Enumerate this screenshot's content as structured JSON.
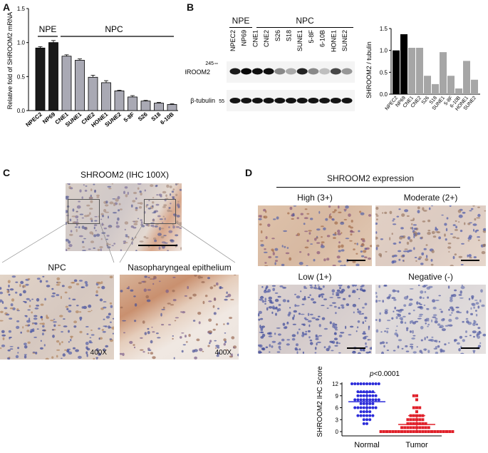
{
  "panels": {
    "a": "A",
    "b": "B",
    "c": "C",
    "d": "D"
  },
  "panelA": {
    "ylabel": "Relative fold of SHROOM2 mRNA",
    "group_npe": "NPE",
    "group_npc": "NPC"
  },
  "panelB": {
    "group_npe": "NPE",
    "group_npc": "NPC",
    "lanes": [
      "NPEC2",
      "NP69",
      "CNE1",
      "CNE2",
      "S26",
      "S18",
      "SUNE1",
      "5-8F",
      "6-10B",
      "HONE1",
      "SUNE2"
    ],
    "marker_top": "245",
    "marker_bottom": "55",
    "band1": "SHROOM2",
    "band2": "β-tubulin",
    "ratio_ylabel": "SHROOM2 / tubulin"
  },
  "panelC": {
    "title": "SHROOM2 (IHC 100X)",
    "zoom1_title": "NPC",
    "zoom2_title": "Nasopharyngeal epithelium",
    "mag1": "400X",
    "mag2": "400X"
  },
  "panelD": {
    "title": "SHROOM2 expression",
    "high": "High (3+)",
    "moderate": "Moderate (2+)",
    "low": "Low (1+)",
    "negative": "Negative (-)",
    "pvalue_italic": "p",
    "pvalue_rest": "<0.0001"
  },
  "chart_data": [
    {
      "type": "bar",
      "categories": [
        "NPEC2",
        "NP69",
        "CNE1",
        "SUNE1",
        "CNE2",
        "HONE1",
        "SUNE2",
        "5-8F",
        "S26",
        "S18",
        "6-10B"
      ],
      "values": [
        0.92,
        1.0,
        0.8,
        0.74,
        0.49,
        0.41,
        0.29,
        0.2,
        0.14,
        0.11,
        0.09
      ],
      "errors": [
        0.02,
        0.03,
        0.02,
        0.02,
        0.03,
        0.03,
        0.01,
        0.02,
        0.01,
        0.01,
        0.01
      ],
      "colors": [
        "#1a1a1a",
        "#1a1a1a",
        "#a9a9b4",
        "#a9a9b4",
        "#a9a9b4",
        "#a9a9b4",
        "#a9a9b4",
        "#a9a9b4",
        "#a9a9b4",
        "#a9a9b4",
        "#a9a9b4"
      ],
      "ylabel": "Relative fold of SHROOM2 mRNA",
      "ylim": [
        0,
        1.5
      ],
      "yticks": [
        "0.0",
        "0.5",
        "1.0",
        "1.5"
      ]
    },
    {
      "type": "bar",
      "categories": [
        "NPEC2",
        "NP69",
        "CNE1",
        "CNE2",
        "S26",
        "S18",
        "SUNE1",
        "5-8F",
        "6-10B",
        "HONE1",
        "SUNE2"
      ],
      "values": [
        1.0,
        1.37,
        1.06,
        1.06,
        0.42,
        0.23,
        0.96,
        0.42,
        0.13,
        0.76,
        0.33
      ],
      "colors": [
        "#000000",
        "#000000",
        "#a6a6a6",
        "#a6a6a6",
        "#a6a6a6",
        "#a6a6a6",
        "#a6a6a6",
        "#a6a6a6",
        "#a6a6a6",
        "#a6a6a6",
        "#a6a6a6"
      ],
      "ylabel": "SHROOM2 / tubulin",
      "ylim": [
        0,
        1.5
      ],
      "yticks": [
        "0.0",
        "0.5",
        "1.0",
        "1.5"
      ]
    },
    {
      "type": "scatter",
      "categories": [
        "Normal",
        "Tumor"
      ],
      "ylabel": "SHROOM2 IHC Score",
      "ylim": [
        0,
        12
      ],
      "yticks": [
        "0",
        "3",
        "6",
        "9",
        "12"
      ],
      "series": [
        {
          "name": "Normal",
          "color": "#2b2bd9",
          "mean": 7.5,
          "sd": 2.3,
          "values": [
            12,
            12,
            12,
            12,
            12,
            12,
            12,
            12,
            12,
            12,
            10,
            10,
            10,
            10,
            10,
            10,
            9,
            9,
            9,
            9,
            9,
            9,
            9,
            8,
            8,
            8,
            8,
            8,
            8,
            8,
            8,
            8,
            7,
            7,
            7,
            7,
            7,
            6,
            6,
            6,
            6,
            6,
            6,
            6,
            6,
            5,
            5,
            5,
            5,
            4,
            4,
            4,
            4,
            4,
            4,
            3,
            3,
            3,
            2,
            2
          ]
        },
        {
          "name": "Tumor",
          "color": "#e0202a",
          "mean": 1.8,
          "sd": 2.2,
          "values": [
            9,
            9,
            8,
            6,
            6,
            6,
            5,
            4,
            4,
            4,
            4,
            4,
            3,
            3,
            3,
            3,
            3,
            3,
            2,
            2,
            2,
            2,
            2,
            2,
            2,
            1,
            1,
            1,
            1,
            1,
            1,
            1,
            1,
            1,
            1,
            0,
            0,
            0,
            0,
            0,
            0,
            0,
            0,
            0,
            0,
            0,
            0,
            0,
            0,
            0,
            0,
            0,
            0,
            0,
            0,
            0,
            0,
            0,
            0,
            0
          ]
        }
      ]
    }
  ]
}
